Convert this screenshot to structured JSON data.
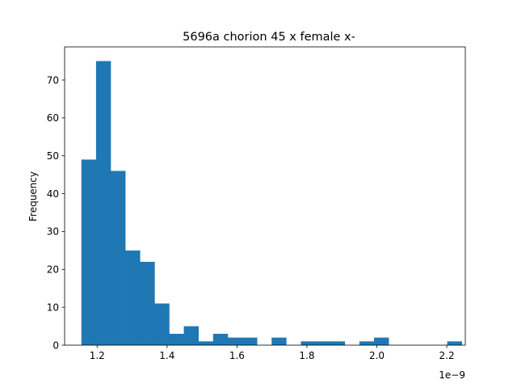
{
  "chart_data": {
    "type": "bar",
    "title": "5696a chorion 45 x female x-",
    "xlabel": "",
    "ylabel": "Frequency",
    "x_offset_label": "1e−9",
    "xlim": [
      1.107,
      2.253
    ],
    "ylim": [
      0,
      78.75
    ],
    "x_ticks": [
      1.2,
      1.4,
      1.6,
      1.8,
      2.0,
      2.2
    ],
    "x_tick_labels": [
      "1.2",
      "1.4",
      "1.6",
      "1.8",
      "2.0",
      "2.2"
    ],
    "y_ticks": [
      0,
      10,
      20,
      30,
      40,
      50,
      60,
      70
    ],
    "y_tick_labels": [
      "0",
      "10",
      "20",
      "30",
      "40",
      "50",
      "60",
      "70"
    ],
    "bin_start": 1.155,
    "bin_width": 0.04185,
    "values": [
      49,
      75,
      46,
      25,
      22,
      11,
      3,
      5,
      1,
      3,
      2,
      2,
      0,
      2,
      0,
      1,
      1,
      1,
      0,
      1,
      2,
      0,
      0,
      0,
      0,
      1
    ],
    "bar_color": "#1f77b4",
    "grid": false,
    "legend": "none"
  }
}
